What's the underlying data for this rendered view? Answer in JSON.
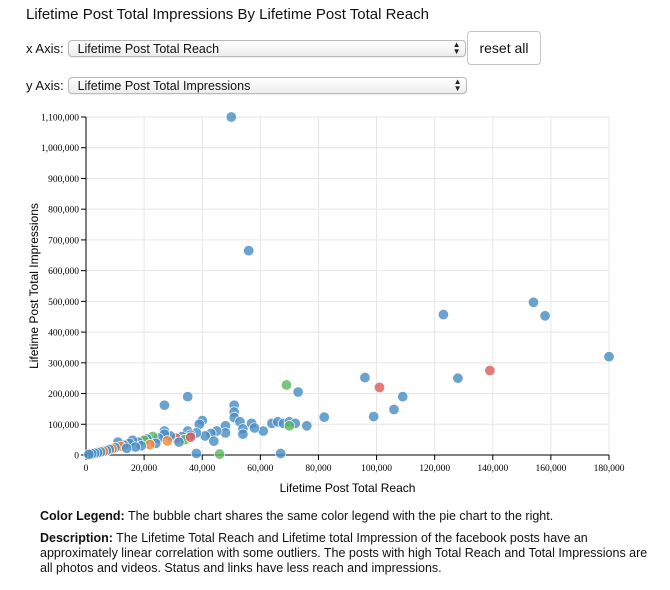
{
  "title": "Lifetime Post Total Impressions By Lifetime Post Total Reach",
  "controls": {
    "x_label": "x Axis:",
    "x_value": "Lifetime Post Total Reach",
    "y_label": "y Axis:",
    "y_value": "Lifetime Post Total Impressions",
    "reset_label": "reset all"
  },
  "legend": {
    "label": "Color Legend:",
    "text": " The bubble chart shares the same color legend with the pie chart to the right."
  },
  "description": {
    "label": "Description:",
    "text": " The Lifetime Total Reach and Lifetime total Impression of the facebook posts have an approximately linear correlation with some outliers. The posts with high Total Reach and Total Impressions are all photos and videos. Status and links have less reach and impressions."
  },
  "chart_data": {
    "type": "scatter",
    "xlabel": "Lifetime Post Total Reach",
    "ylabel": "Lifetime Post Total Impressions",
    "xlim": [
      0,
      180000
    ],
    "ylim": [
      0,
      1100000
    ],
    "x_ticks": [
      0,
      20000,
      40000,
      60000,
      80000,
      100000,
      120000,
      140000,
      160000,
      180000
    ],
    "x_tick_labels": [
      "0",
      "20,000",
      "40,000",
      "60,000",
      "80,000",
      "100,000",
      "120,000",
      "140,000",
      "160,000",
      "180,000"
    ],
    "y_ticks": [
      0,
      100000,
      200000,
      300000,
      400000,
      500000,
      600000,
      700000,
      800000,
      900000,
      1000000,
      1100000
    ],
    "y_tick_labels": [
      "0",
      "100,000",
      "200,000",
      "300,000",
      "400,000",
      "500,000",
      "600,000",
      "700,000",
      "800,000",
      "900,000",
      "1,000,000",
      "1,100,000"
    ],
    "grid": true,
    "colors": {
      "blue": "#4a8fc4",
      "green": "#5cb85c",
      "red": "#e05c5c",
      "orange": "#f0883a"
    },
    "points": [
      {
        "x": 50000,
        "y": 1100000,
        "c": "blue"
      },
      {
        "x": 56000,
        "y": 665000,
        "c": "blue"
      },
      {
        "x": 123000,
        "y": 457000,
        "c": "blue"
      },
      {
        "x": 154000,
        "y": 497000,
        "c": "blue"
      },
      {
        "x": 158000,
        "y": 453000,
        "c": "blue"
      },
      {
        "x": 180000,
        "y": 320000,
        "c": "blue"
      },
      {
        "x": 139000,
        "y": 275000,
        "c": "red"
      },
      {
        "x": 128000,
        "y": 250000,
        "c": "blue"
      },
      {
        "x": 96000,
        "y": 252000,
        "c": "blue"
      },
      {
        "x": 101000,
        "y": 220000,
        "c": "red"
      },
      {
        "x": 109000,
        "y": 190000,
        "c": "blue"
      },
      {
        "x": 106000,
        "y": 148000,
        "c": "blue"
      },
      {
        "x": 99000,
        "y": 125000,
        "c": "blue"
      },
      {
        "x": 69000,
        "y": 228000,
        "c": "green"
      },
      {
        "x": 73000,
        "y": 205000,
        "c": "blue"
      },
      {
        "x": 35000,
        "y": 190000,
        "c": "blue"
      },
      {
        "x": 27000,
        "y": 162000,
        "c": "blue"
      },
      {
        "x": 51000,
        "y": 162000,
        "c": "blue"
      },
      {
        "x": 51000,
        "y": 140000,
        "c": "blue"
      },
      {
        "x": 51000,
        "y": 122000,
        "c": "blue"
      },
      {
        "x": 82000,
        "y": 123000,
        "c": "blue"
      },
      {
        "x": 40000,
        "y": 112000,
        "c": "blue"
      },
      {
        "x": 39000,
        "y": 100000,
        "c": "blue"
      },
      {
        "x": 48000,
        "y": 95000,
        "c": "blue"
      },
      {
        "x": 53000,
        "y": 108000,
        "c": "blue"
      },
      {
        "x": 57000,
        "y": 103000,
        "c": "blue"
      },
      {
        "x": 64000,
        "y": 103000,
        "c": "blue"
      },
      {
        "x": 66000,
        "y": 108000,
        "c": "blue"
      },
      {
        "x": 68000,
        "y": 103000,
        "c": "blue"
      },
      {
        "x": 70000,
        "y": 108000,
        "c": "blue"
      },
      {
        "x": 72000,
        "y": 103000,
        "c": "blue"
      },
      {
        "x": 70000,
        "y": 95000,
        "c": "green"
      },
      {
        "x": 76000,
        "y": 95000,
        "c": "blue"
      },
      {
        "x": 61000,
        "y": 78000,
        "c": "blue"
      },
      {
        "x": 58000,
        "y": 88000,
        "c": "blue"
      },
      {
        "x": 54000,
        "y": 85000,
        "c": "blue"
      },
      {
        "x": 54000,
        "y": 68000,
        "c": "blue"
      },
      {
        "x": 48000,
        "y": 72000,
        "c": "blue"
      },
      {
        "x": 45000,
        "y": 78000,
        "c": "blue"
      },
      {
        "x": 43000,
        "y": 70000,
        "c": "blue"
      },
      {
        "x": 41000,
        "y": 62000,
        "c": "blue"
      },
      {
        "x": 38000,
        "y": 72000,
        "c": "blue"
      },
      {
        "x": 35000,
        "y": 78000,
        "c": "blue"
      },
      {
        "x": 36000,
        "y": 65000,
        "c": "blue"
      },
      {
        "x": 33000,
        "y": 60000,
        "c": "blue"
      },
      {
        "x": 31000,
        "y": 55000,
        "c": "red"
      },
      {
        "x": 34000,
        "y": 50000,
        "c": "green"
      },
      {
        "x": 36000,
        "y": 58000,
        "c": "red"
      },
      {
        "x": 29000,
        "y": 62000,
        "c": "blue"
      },
      {
        "x": 27000,
        "y": 78000,
        "c": "blue"
      },
      {
        "x": 27000,
        "y": 68000,
        "c": "blue"
      },
      {
        "x": 25000,
        "y": 55000,
        "c": "blue"
      },
      {
        "x": 23000,
        "y": 60000,
        "c": "green"
      },
      {
        "x": 21000,
        "y": 52000,
        "c": "blue"
      },
      {
        "x": 20000,
        "y": 48000,
        "c": "green"
      },
      {
        "x": 18000,
        "y": 42000,
        "c": "blue"
      },
      {
        "x": 16000,
        "y": 48000,
        "c": "blue"
      },
      {
        "x": 15000,
        "y": 38000,
        "c": "blue"
      },
      {
        "x": 13000,
        "y": 32000,
        "c": "blue"
      },
      {
        "x": 11000,
        "y": 42000,
        "c": "blue"
      },
      {
        "x": 12000,
        "y": 28000,
        "c": "orange"
      },
      {
        "x": 10000,
        "y": 24000,
        "c": "blue"
      },
      {
        "x": 9000,
        "y": 20000,
        "c": "orange"
      },
      {
        "x": 8000,
        "y": 18000,
        "c": "blue"
      },
      {
        "x": 7000,
        "y": 14000,
        "c": "blue"
      },
      {
        "x": 6000,
        "y": 12000,
        "c": "orange"
      },
      {
        "x": 5000,
        "y": 10000,
        "c": "blue"
      },
      {
        "x": 4000,
        "y": 8000,
        "c": "blue"
      },
      {
        "x": 3000,
        "y": 6000,
        "c": "blue"
      },
      {
        "x": 2000,
        "y": 4000,
        "c": "blue"
      },
      {
        "x": 1000,
        "y": 2000,
        "c": "blue"
      },
      {
        "x": 24000,
        "y": 38000,
        "c": "blue"
      },
      {
        "x": 22000,
        "y": 34000,
        "c": "orange"
      },
      {
        "x": 19000,
        "y": 30000,
        "c": "blue"
      },
      {
        "x": 17000,
        "y": 26000,
        "c": "blue"
      },
      {
        "x": 14000,
        "y": 22000,
        "c": "blue"
      },
      {
        "x": 38000,
        "y": 5000,
        "c": "blue"
      },
      {
        "x": 46000,
        "y": 3000,
        "c": "green"
      },
      {
        "x": 67000,
        "y": 5000,
        "c": "blue"
      },
      {
        "x": 44000,
        "y": 45000,
        "c": "blue"
      },
      {
        "x": 32000,
        "y": 42000,
        "c": "blue"
      },
      {
        "x": 28000,
        "y": 46000,
        "c": "orange"
      }
    ]
  }
}
